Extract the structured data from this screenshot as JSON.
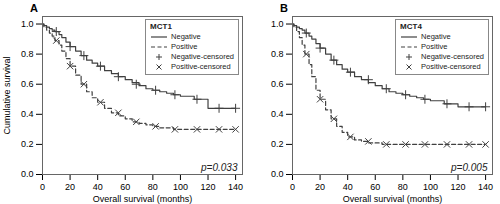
{
  "chart_data": [
    {
      "type": "step",
      "title": "A",
      "legend_title": "MCT1",
      "xlabel": "Overall survival (months)",
      "ylabel": "Cumulative survival",
      "xlim": [
        0,
        145
      ],
      "xticks": [
        0,
        20,
        40,
        60,
        80,
        100,
        120,
        140
      ],
      "ylim": [
        0.0,
        1.05
      ],
      "yticks": [
        {
          "value": 0.0,
          "label": "0.0"
        },
        0.2,
        0.4,
        0.6,
        0.8,
        {
          "value": 1.0,
          "label": "1.0"
        }
      ],
      "grid": false,
      "legend": "upper right",
      "annotations": [
        "p=0.033"
      ],
      "series": [
        {
          "name": "Negative",
          "type": "line",
          "line_style": "solid",
          "color": "#404040",
          "x": [
            0,
            1,
            3,
            5,
            7,
            9,
            12,
            14,
            17,
            20,
            24,
            28,
            32,
            36,
            40,
            45,
            50,
            55,
            60,
            65,
            70,
            75,
            80,
            85,
            90,
            95,
            100,
            110,
            120,
            130,
            140
          ],
          "values": [
            1.0,
            0.99,
            0.98,
            0.97,
            0.96,
            0.95,
            0.93,
            0.91,
            0.88,
            0.85,
            0.82,
            0.79,
            0.76,
            0.74,
            0.72,
            0.69,
            0.67,
            0.65,
            0.63,
            0.61,
            0.59,
            0.57,
            0.56,
            0.55,
            0.54,
            0.53,
            0.52,
            0.5,
            0.44,
            0.44,
            0.44
          ]
        },
        {
          "name": "Positive",
          "type": "line",
          "line_style": "dashed",
          "color": "#404040",
          "x": [
            0,
            1,
            3,
            5,
            7,
            9,
            12,
            14,
            17,
            20,
            24,
            28,
            32,
            36,
            40,
            45,
            50,
            55,
            60,
            65,
            70,
            75,
            80,
            85,
            90,
            95,
            100,
            110,
            120,
            130,
            140
          ],
          "values": [
            1.0,
            0.98,
            0.96,
            0.94,
            0.92,
            0.89,
            0.86,
            0.82,
            0.77,
            0.72,
            0.66,
            0.6,
            0.55,
            0.51,
            0.48,
            0.44,
            0.41,
            0.39,
            0.37,
            0.35,
            0.34,
            0.33,
            0.32,
            0.31,
            0.31,
            0.3,
            0.3,
            0.3,
            0.3,
            0.3,
            0.3
          ]
        },
        {
          "name": "Negative-censored",
          "type": "scatter",
          "marker": "plus",
          "color": "#404040",
          "x": [
            10,
            20,
            30,
            42,
            55,
            68,
            82,
            96,
            112,
            128,
            140
          ],
          "values": [
            0.95,
            0.85,
            0.79,
            0.72,
            0.65,
            0.6,
            0.56,
            0.53,
            0.5,
            0.44,
            0.44
          ]
        },
        {
          "name": "Positive-censored",
          "type": "scatter",
          "marker": "x",
          "color": "#404040",
          "x": [
            10,
            20,
            30,
            42,
            55,
            68,
            82,
            96,
            112,
            128,
            140
          ],
          "values": [
            0.89,
            0.72,
            0.6,
            0.48,
            0.41,
            0.35,
            0.32,
            0.3,
            0.3,
            0.3,
            0.3
          ]
        }
      ]
    },
    {
      "type": "step",
      "title": "B",
      "legend_title": "MCT4",
      "xlabel": "Overall survival (months)",
      "xlim": [
        0,
        145
      ],
      "xticks": [
        0,
        20,
        40,
        60,
        80,
        100,
        120,
        140
      ],
      "ylim": [
        0.0,
        1.05
      ],
      "yticks": [
        {
          "value": 0.0,
          "label": "0.0"
        },
        0.2,
        0.4,
        0.6,
        0.8,
        {
          "value": 1.0,
          "label": "1.0"
        }
      ],
      "grid": false,
      "legend": "upper right",
      "annotations": [
        "p=0.005"
      ],
      "series": [
        {
          "name": "Negative",
          "type": "line",
          "line_style": "solid",
          "color": "#404040",
          "x": [
            0,
            1,
            3,
            5,
            7,
            9,
            12,
            14,
            17,
            20,
            24,
            28,
            32,
            36,
            40,
            45,
            50,
            55,
            60,
            65,
            70,
            75,
            80,
            85,
            90,
            95,
            100,
            110,
            120,
            130,
            140
          ],
          "values": [
            1.0,
            0.99,
            0.98,
            0.97,
            0.96,
            0.94,
            0.92,
            0.9,
            0.87,
            0.84,
            0.8,
            0.76,
            0.73,
            0.7,
            0.68,
            0.65,
            0.63,
            0.61,
            0.59,
            0.57,
            0.55,
            0.54,
            0.53,
            0.52,
            0.51,
            0.5,
            0.49,
            0.47,
            0.45,
            0.45,
            0.45
          ]
        },
        {
          "name": "Positive",
          "type": "line",
          "line_style": "dashed",
          "color": "#404040",
          "x": [
            0,
            1,
            3,
            5,
            7,
            9,
            12,
            14,
            17,
            20,
            24,
            28,
            32,
            36,
            40,
            45,
            50,
            55,
            60,
            65,
            70,
            75,
            80,
            85,
            90,
            95,
            100,
            110,
            120,
            130,
            140
          ],
          "values": [
            1.0,
            0.98,
            0.95,
            0.91,
            0.86,
            0.8,
            0.73,
            0.65,
            0.56,
            0.5,
            0.43,
            0.37,
            0.32,
            0.28,
            0.25,
            0.23,
            0.22,
            0.21,
            0.21,
            0.2,
            0.2,
            0.2,
            0.2,
            0.2,
            0.2,
            0.2,
            0.2,
            0.2,
            0.2,
            0.2,
            0.2
          ]
        },
        {
          "name": "Negative-censored",
          "type": "scatter",
          "marker": "plus",
          "color": "#404040",
          "x": [
            10,
            20,
            30,
            42,
            55,
            68,
            82,
            96,
            112,
            128,
            140
          ],
          "values": [
            0.94,
            0.84,
            0.76,
            0.68,
            0.63,
            0.57,
            0.53,
            0.5,
            0.47,
            0.45,
            0.45
          ]
        },
        {
          "name": "Positive-censored",
          "type": "scatter",
          "marker": "x",
          "color": "#404040",
          "x": [
            10,
            20,
            30,
            42,
            55,
            68,
            82,
            96,
            112,
            128,
            140
          ],
          "values": [
            0.8,
            0.5,
            0.37,
            0.25,
            0.22,
            0.2,
            0.2,
            0.2,
            0.2,
            0.2,
            0.2
          ]
        }
      ]
    }
  ]
}
